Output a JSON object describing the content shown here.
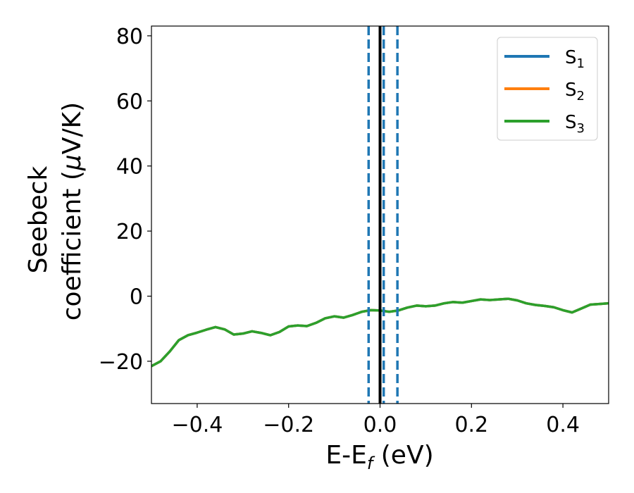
{
  "chart_data": {
    "type": "line",
    "title": "",
    "xlabel": {
      "main": "E-E",
      "sub": "f",
      "unit": " (eV)"
    },
    "ylabel": {
      "line1": "Seebeck",
      "line2": "coefficient  (",
      "mu": "μ",
      "unit": "V/K)"
    },
    "xlim": [
      -0.5,
      0.5
    ],
    "ylim": [
      -33,
      83
    ],
    "xticks": [
      -0.4,
      -0.2,
      0.0,
      0.2,
      0.4
    ],
    "xtick_labels": [
      "−0.4",
      "−0.2",
      "0.0",
      "0.2",
      "0.4"
    ],
    "yticks": [
      -20,
      0,
      20,
      40,
      60,
      80
    ],
    "ytick_labels": [
      "−20",
      "0",
      "20",
      "40",
      "60",
      "80"
    ],
    "grid": false,
    "legend_position": "top-right",
    "x": [
      -0.5,
      -0.48,
      -0.46,
      -0.44,
      -0.42,
      -0.4,
      -0.38,
      -0.36,
      -0.34,
      -0.32,
      -0.3,
      -0.28,
      -0.26,
      -0.24,
      -0.22,
      -0.2,
      -0.18,
      -0.16,
      -0.14,
      -0.12,
      -0.1,
      -0.08,
      -0.06,
      -0.04,
      -0.02,
      0.0,
      0.02,
      0.04,
      0.06,
      0.08,
      0.1,
      0.12,
      0.14,
      0.16,
      0.18,
      0.2,
      0.22,
      0.24,
      0.26,
      0.28,
      0.3,
      0.32,
      0.34,
      0.36,
      0.38,
      0.4,
      0.42,
      0.44,
      0.46,
      0.48,
      0.5
    ],
    "series": [
      {
        "name": "S",
        "name_sub": "1",
        "color": "#1f77b4",
        "values": [
          -21.5,
          -20.0,
          -17.0,
          -13.5,
          -12.0,
          -11.2,
          -10.3,
          -9.5,
          -10.2,
          -11.8,
          -11.5,
          -10.8,
          -11.3,
          -12.0,
          -11.0,
          -9.3,
          -9.0,
          -9.2,
          -8.2,
          -6.8,
          -6.2,
          -6.6,
          -5.8,
          -4.8,
          -4.3,
          -4.4,
          -4.8,
          -4.4,
          -3.5,
          -2.9,
          -3.1,
          -2.9,
          -2.2,
          -1.8,
          -2.0,
          -1.5,
          -1.0,
          -1.2,
          -1.0,
          -0.8,
          -1.3,
          -2.2,
          -2.7,
          -3.0,
          -3.4,
          -4.3,
          -5.0,
          -3.8,
          -2.6,
          -2.4,
          -2.2
        ]
      },
      {
        "name": "S",
        "name_sub": "2",
        "color": "#ff7f0e",
        "values": [
          -21.5,
          -20.0,
          -17.0,
          -13.5,
          -12.0,
          -11.2,
          -10.3,
          -9.5,
          -10.2,
          -11.8,
          -11.5,
          -10.8,
          -11.3,
          -12.0,
          -11.0,
          -9.3,
          -9.0,
          -9.2,
          -8.2,
          -6.8,
          -6.2,
          -6.6,
          -5.8,
          -4.8,
          -4.3,
          -4.4,
          -4.8,
          -4.4,
          -3.5,
          -2.9,
          -3.1,
          -2.9,
          -2.2,
          -1.8,
          -2.0,
          -1.5,
          -1.0,
          -1.2,
          -1.0,
          -0.8,
          -1.3,
          -2.2,
          -2.7,
          -3.0,
          -3.4,
          -4.3,
          -5.0,
          -3.8,
          -2.6,
          -2.4,
          -2.2
        ]
      },
      {
        "name": "S",
        "name_sub": "3",
        "color": "#2ca02c",
        "values": [
          -21.5,
          -20.0,
          -17.0,
          -13.5,
          -12.0,
          -11.2,
          -10.3,
          -9.5,
          -10.2,
          -11.8,
          -11.5,
          -10.8,
          -11.3,
          -12.0,
          -11.0,
          -9.3,
          -9.0,
          -9.2,
          -8.2,
          -6.8,
          -6.2,
          -6.6,
          -5.8,
          -4.8,
          -4.3,
          -4.4,
          -4.8,
          -4.4,
          -3.5,
          -2.9,
          -3.1,
          -2.9,
          -2.2,
          -1.8,
          -2.0,
          -1.5,
          -1.0,
          -1.2,
          -1.0,
          -0.8,
          -1.3,
          -2.2,
          -2.7,
          -3.0,
          -3.4,
          -4.3,
          -5.0,
          -3.8,
          -2.6,
          -2.4,
          -2.2
        ]
      }
    ],
    "vlines": [
      {
        "x": -0.025,
        "style": "dashed",
        "color": "#1f77b4"
      },
      {
        "x": 0.0,
        "style": "solid",
        "color": "#000000"
      },
      {
        "x": 0.008,
        "style": "dashed",
        "color": "#1f77b4"
      },
      {
        "x": 0.038,
        "style": "dashed",
        "color": "#1f77b4"
      }
    ]
  }
}
